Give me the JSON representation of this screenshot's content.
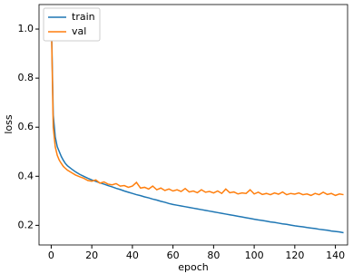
{
  "chart_data": {
    "type": "line",
    "xlabel": "epoch",
    "ylabel": "loss",
    "x": [
      0,
      1,
      2,
      3,
      4,
      5,
      6,
      7,
      8,
      10,
      12,
      14,
      16,
      18,
      20,
      22,
      24,
      26,
      28,
      30,
      32,
      34,
      36,
      38,
      40,
      42,
      44,
      46,
      48,
      50,
      52,
      54,
      56,
      58,
      60,
      62,
      64,
      66,
      68,
      70,
      72,
      74,
      76,
      78,
      80,
      82,
      84,
      86,
      88,
      90,
      92,
      94,
      96,
      98,
      100,
      102,
      104,
      106,
      108,
      110,
      112,
      114,
      116,
      118,
      120,
      122,
      124,
      126,
      128,
      130,
      132,
      134,
      136,
      138,
      140,
      142,
      144
    ],
    "series": [
      {
        "name": "train",
        "color": "#1f77b4",
        "values": [
          1.07,
          0.65,
          0.56,
          0.52,
          0.5,
          0.48,
          0.465,
          0.452,
          0.443,
          0.43,
          0.418,
          0.408,
          0.4,
          0.392,
          0.385,
          0.379,
          0.373,
          0.368,
          0.362,
          0.357,
          0.351,
          0.346,
          0.34,
          0.335,
          0.33,
          0.325,
          0.321,
          0.316,
          0.312,
          0.307,
          0.303,
          0.298,
          0.294,
          0.289,
          0.285,
          0.282,
          0.279,
          0.276,
          0.273,
          0.27,
          0.267,
          0.264,
          0.261,
          0.258,
          0.255,
          0.252,
          0.249,
          0.246,
          0.243,
          0.24,
          0.237,
          0.234,
          0.231,
          0.228,
          0.225,
          0.222,
          0.22,
          0.217,
          0.214,
          0.212,
          0.209,
          0.206,
          0.204,
          0.201,
          0.198,
          0.196,
          0.194,
          0.191,
          0.189,
          0.187,
          0.184,
          0.182,
          0.18,
          0.177,
          0.175,
          0.173,
          0.17
        ]
      },
      {
        "name": "val",
        "color": "#ff7f0e",
        "values": [
          1.07,
          0.6,
          0.52,
          0.485,
          0.465,
          0.452,
          0.44,
          0.432,
          0.425,
          0.415,
          0.405,
          0.398,
          0.392,
          0.383,
          0.38,
          0.385,
          0.372,
          0.377,
          0.368,
          0.365,
          0.37,
          0.36,
          0.362,
          0.355,
          0.36,
          0.375,
          0.352,
          0.355,
          0.348,
          0.36,
          0.345,
          0.352,
          0.342,
          0.348,
          0.34,
          0.345,
          0.338,
          0.35,
          0.336,
          0.34,
          0.333,
          0.345,
          0.335,
          0.338,
          0.332,
          0.34,
          0.33,
          0.348,
          0.333,
          0.336,
          0.328,
          0.332,
          0.33,
          0.345,
          0.328,
          0.335,
          0.326,
          0.33,
          0.325,
          0.332,
          0.327,
          0.336,
          0.325,
          0.33,
          0.327,
          0.332,
          0.325,
          0.328,
          0.322,
          0.33,
          0.325,
          0.335,
          0.326,
          0.33,
          0.322,
          0.328,
          0.325
        ]
      }
    ],
    "xlim": [
      -6,
      146
    ],
    "ylim": [
      0.12,
      1.1
    ],
    "xticks": [
      0,
      20,
      40,
      60,
      80,
      100,
      120,
      140
    ],
    "yticks": [
      0.2,
      0.4,
      0.6,
      0.8,
      {
        "value": 1,
        "label": "1.0"
      }
    ],
    "legend": "upper left"
  }
}
